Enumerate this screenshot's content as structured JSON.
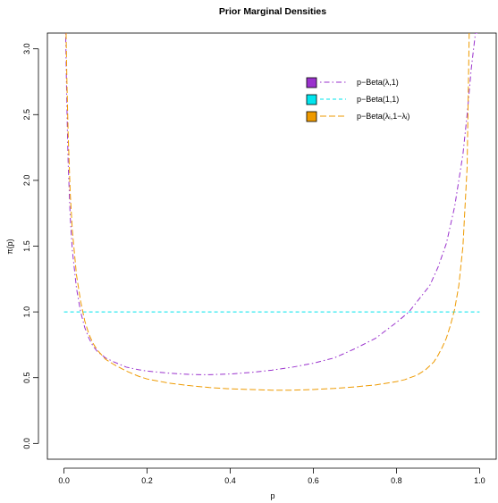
{
  "chart_data": {
    "type": "line",
    "title": "Prior Marginal Densities",
    "xlabel": "p",
    "ylabel": "π(p)",
    "xlim": [
      -0.04,
      1.04
    ],
    "ylim": [
      -0.12,
      3.12
    ],
    "x_ticks": [
      0.0,
      0.2,
      0.4,
      0.6,
      0.8,
      1.0
    ],
    "x_tick_labels": [
      "0.0",
      "0.2",
      "0.4",
      "0.6",
      "0.8",
      "1.0"
    ],
    "y_ticks": [
      0.0,
      0.5,
      1.0,
      1.5,
      2.0,
      2.5,
      3.0
    ],
    "y_tick_labels": [
      "0.0",
      "0.5",
      "1.0",
      "1.5",
      "2.0",
      "2.5",
      "3.0"
    ],
    "grid": false,
    "legend_position": "top-right",
    "series": [
      {
        "name": "p−Beta(λ,1)",
        "color": "#9A32CD",
        "dash": "dot-dash",
        "x": [
          0.004,
          0.006,
          0.008,
          0.01,
          0.015,
          0.02,
          0.03,
          0.04,
          0.05,
          0.06,
          0.07,
          0.08,
          0.1,
          0.12,
          0.15,
          0.18,
          0.2,
          0.25,
          0.3,
          0.33,
          0.35,
          0.4,
          0.45,
          0.5,
          0.55,
          0.6,
          0.65,
          0.7,
          0.75,
          0.8,
          0.83,
          0.85,
          0.88,
          0.9,
          0.92,
          0.94,
          0.96,
          0.97,
          0.98,
          0.99,
          0.995
        ],
        "y": [
          3.12,
          2.73,
          2.4,
          2.13,
          1.72,
          1.47,
          1.18,
          1.0,
          0.88,
          0.8,
          0.74,
          0.7,
          0.65,
          0.62,
          0.58,
          0.56,
          0.55,
          0.535,
          0.525,
          0.523,
          0.523,
          0.528,
          0.54,
          0.557,
          0.58,
          0.61,
          0.65,
          0.72,
          0.8,
          0.92,
          1.0,
          1.08,
          1.2,
          1.34,
          1.52,
          1.8,
          2.2,
          2.5,
          2.85,
          3.12,
          3.12
        ]
      },
      {
        "name": "p−Beta(1,1)",
        "color": "#00E5EE",
        "dash": "dash",
        "x": [
          0.0,
          1.0
        ],
        "y": [
          1.0,
          1.0
        ]
      },
      {
        "name": "p−Beta(λᵢ,1−λᵢ)",
        "color": "#EE9A00",
        "dash": "longdash",
        "x": [
          0.005,
          0.007,
          0.01,
          0.015,
          0.02,
          0.03,
          0.04,
          0.05,
          0.06,
          0.07,
          0.08,
          0.1,
          0.12,
          0.15,
          0.18,
          0.2,
          0.25,
          0.3,
          0.35,
          0.4,
          0.45,
          0.5,
          0.55,
          0.6,
          0.65,
          0.7,
          0.75,
          0.8,
          0.82,
          0.85,
          0.87,
          0.89,
          0.9,
          0.91,
          0.92,
          0.93,
          0.94,
          0.95,
          0.96,
          0.97,
          0.975
        ],
        "y": [
          3.12,
          2.75,
          2.35,
          1.9,
          1.62,
          1.28,
          1.08,
          0.93,
          0.83,
          0.76,
          0.71,
          0.64,
          0.6,
          0.55,
          0.51,
          0.49,
          0.46,
          0.44,
          0.425,
          0.415,
          0.41,
          0.405,
          0.405,
          0.41,
          0.418,
          0.43,
          0.445,
          0.47,
          0.485,
          0.52,
          0.56,
          0.62,
          0.67,
          0.73,
          0.8,
          0.9,
          1.02,
          1.2,
          1.5,
          2.1,
          3.12
        ]
      }
    ]
  }
}
